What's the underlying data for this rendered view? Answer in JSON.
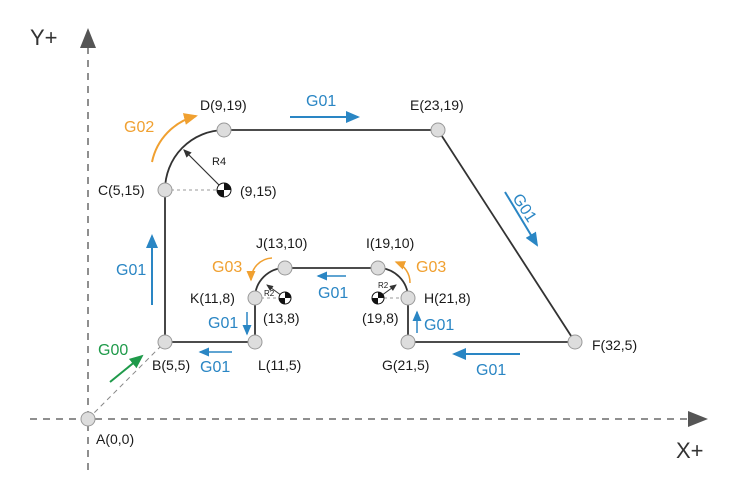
{
  "axes": {
    "y_label": "Y+",
    "x_label": "X+"
  },
  "colors": {
    "g01": "#2a86c4",
    "g02": "#f0a030",
    "g00": "#1f9a4a",
    "path": "#333333",
    "axis": "#6a6a6a"
  },
  "points": {
    "A": "A(0,0)",
    "B": "B(5,5)",
    "C": "C(5,15)",
    "D": "D(9,19)",
    "E": "E(23,19)",
    "F": "F(32,5)",
    "G": "G(21,5)",
    "H": "H(21,8)",
    "I": "I(19,10)",
    "J": "J(13,10)",
    "K": "K(11,8)",
    "L": "L(11,5)"
  },
  "centers": {
    "c1": "(9,15)",
    "c2": "(13,8)",
    "c3": "(19,8)"
  },
  "radii": {
    "r4": "R4",
    "r2a": "R2",
    "r2b": "R2"
  },
  "codes": {
    "g00": "G00",
    "g02_top": "G02",
    "g01_top": "G01",
    "g01_right": "G01",
    "g01_bottom_right": "G01",
    "g01_g_up": "G01",
    "g03_right": "G03",
    "g01_inner": "G01",
    "g03_left": "G03",
    "g01_l_down": "G01",
    "g01_bottom_left": "G01",
    "g01_left": "G01"
  }
}
